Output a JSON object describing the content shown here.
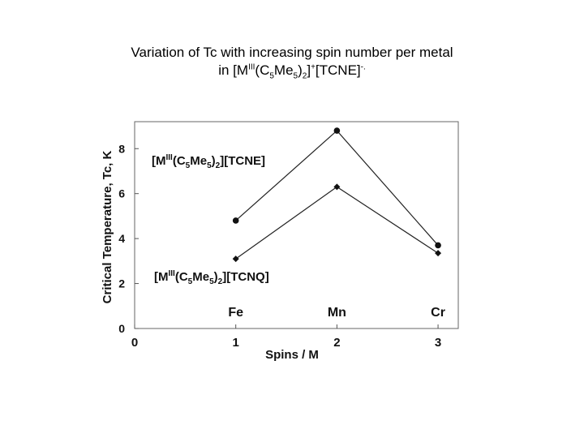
{
  "title": {
    "line1": "Variation of Tc with increasing spin number per metal",
    "line2_prefix": "in [M",
    "line2_sup1": "III",
    "line2_mid1": "(C",
    "line2_sub1": "5",
    "line2_mid2": "Me",
    "line2_sub2": "5",
    "line2_mid3": ")",
    "line2_sub3": "2",
    "line2_mid4": "]",
    "line2_sup2": "+",
    "line2_mid5": "[TCNE]",
    "line2_sup3": "-."
  },
  "chart_data": {
    "type": "line",
    "xlabel": "Spins / M",
    "ylabel": "Critical Temperature, Tc, K",
    "xlim": [
      0,
      3.2
    ],
    "ylim": [
      0,
      9.2
    ],
    "x_ticks": [
      0,
      1,
      2,
      3
    ],
    "y_ticks": [
      0,
      2,
      4,
      6,
      8
    ],
    "metal_labels": [
      {
        "x": 1,
        "label": "Fe"
      },
      {
        "x": 2,
        "label": "Mn"
      },
      {
        "x": 3,
        "label": "Cr"
      }
    ],
    "series": [
      {
        "label_main": "[M",
        "label_sup": "III",
        "label_a": "(C",
        "label_sub1": "5",
        "label_b": "Me",
        "label_sub2": "5",
        "label_c": ")",
        "label_sub3": "2",
        "label_d": "][TCNE]",
        "x": [
          1,
          2,
          3
        ],
        "values": [
          4.8,
          8.8,
          3.7
        ],
        "marker": "circle"
      },
      {
        "label_main": "[M",
        "label_sup": "III",
        "label_a": "(C",
        "label_sub1": "5",
        "label_b": "Me",
        "label_sub2": "5",
        "label_c": ")",
        "label_sub3": "2",
        "label_d": "][TCNQ]",
        "x": [
          1,
          2,
          3
        ],
        "values": [
          3.1,
          6.3,
          3.35
        ],
        "marker": "diamond"
      }
    ]
  }
}
